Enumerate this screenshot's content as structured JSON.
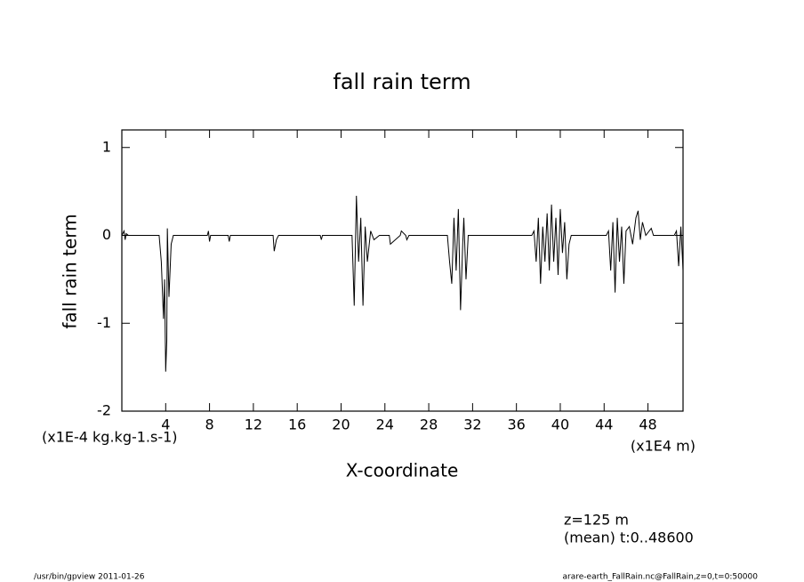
{
  "chart_data": {
    "type": "line",
    "title": "fall rain term",
    "y_label": "fall rain term",
    "x_label": "X-coordinate",
    "y_unit": "(x1E-4 kg.kg-1.s-1)",
    "x_unit": "(x1E4 m)",
    "annotations": [
      "z=125 m",
      "(mean) t:0..48600"
    ],
    "footer_left": "/usr/bin/gpview  2011-01-26",
    "footer_right": "arare-earth_FallRain.nc@FallRain,z=0,t=0:50000",
    "xlim": [
      0,
      51.2
    ],
    "ylim": [
      -2,
      1.2
    ],
    "xticks": [
      4,
      8,
      12,
      16,
      20,
      24,
      28,
      32,
      36,
      40,
      44,
      48
    ],
    "yticks": [
      1,
      0,
      -1,
      -2
    ],
    "series": [
      {
        "color": "#000000",
        "x": [
          0,
          0.2,
          0.3,
          0.4,
          0.6,
          3.4,
          3.6,
          3.8,
          3.9,
          4.0,
          4.1,
          4.15,
          4.3,
          4.5,
          4.7,
          7.8,
          7.9,
          8.0,
          8.1,
          9.7,
          9.8,
          9.9,
          13.8,
          13.9,
          14.1,
          14.3,
          18.1,
          18.2,
          18.3,
          21.0,
          21.2,
          21.4,
          21.6,
          21.8,
          22.0,
          22.2,
          22.4,
          22.7,
          23.0,
          23.5,
          24.4,
          24.5,
          25.4,
          25.5,
          25.9,
          26.0,
          26.2,
          29.7,
          29.9,
          30.1,
          30.3,
          30.5,
          30.7,
          30.9,
          31.1,
          31.2,
          31.4,
          31.6,
          37.4,
          37.6,
          37.8,
          38.0,
          38.2,
          38.4,
          38.6,
          38.8,
          39.0,
          39.2,
          39.4,
          39.6,
          39.8,
          40.0,
          40.2,
          40.4,
          40.6,
          40.8,
          41.0,
          44.2,
          44.4,
          44.6,
          44.8,
          45.0,
          45.2,
          45.4,
          45.6,
          45.8,
          46.0,
          46.3,
          46.6,
          46.9,
          47.1,
          47.3,
          47.5,
          47.8,
          48.3,
          48.5,
          50.4,
          50.6,
          50.8,
          51.0,
          51.2
        ],
        "values": [
          0,
          0.05,
          -0.05,
          0.02,
          0,
          0,
          -0.3,
          -0.95,
          -0.5,
          -1.55,
          -1.2,
          0.08,
          -0.7,
          -0.1,
          0,
          0,
          0.05,
          -0.07,
          0,
          0,
          -0.07,
          0,
          0,
          -0.18,
          -0.05,
          0,
          0,
          -0.05,
          0,
          0,
          -0.8,
          0.45,
          -0.3,
          0.2,
          -0.8,
          0.1,
          -0.3,
          0.05,
          -0.05,
          0,
          0,
          -0.1,
          0,
          0.05,
          0,
          -0.05,
          0,
          0,
          -0.3,
          -0.55,
          0.2,
          -0.4,
          0.3,
          -0.85,
          -0.1,
          0.2,
          -0.5,
          0,
          0,
          0.05,
          -0.3,
          0.2,
          -0.55,
          0.1,
          -0.3,
          0.25,
          -0.4,
          0.35,
          -0.3,
          0.2,
          -0.45,
          0.3,
          -0.2,
          0.15,
          -0.5,
          -0.1,
          0,
          0,
          0.05,
          -0.4,
          0.15,
          -0.65,
          0.2,
          -0.3,
          0.1,
          -0.55,
          0.05,
          0.1,
          -0.1,
          0.2,
          0.28,
          -0.05,
          0.15,
          0,
          0.08,
          0,
          0,
          0.05,
          -0.35,
          0.1,
          -0.4
        ]
      }
    ]
  }
}
